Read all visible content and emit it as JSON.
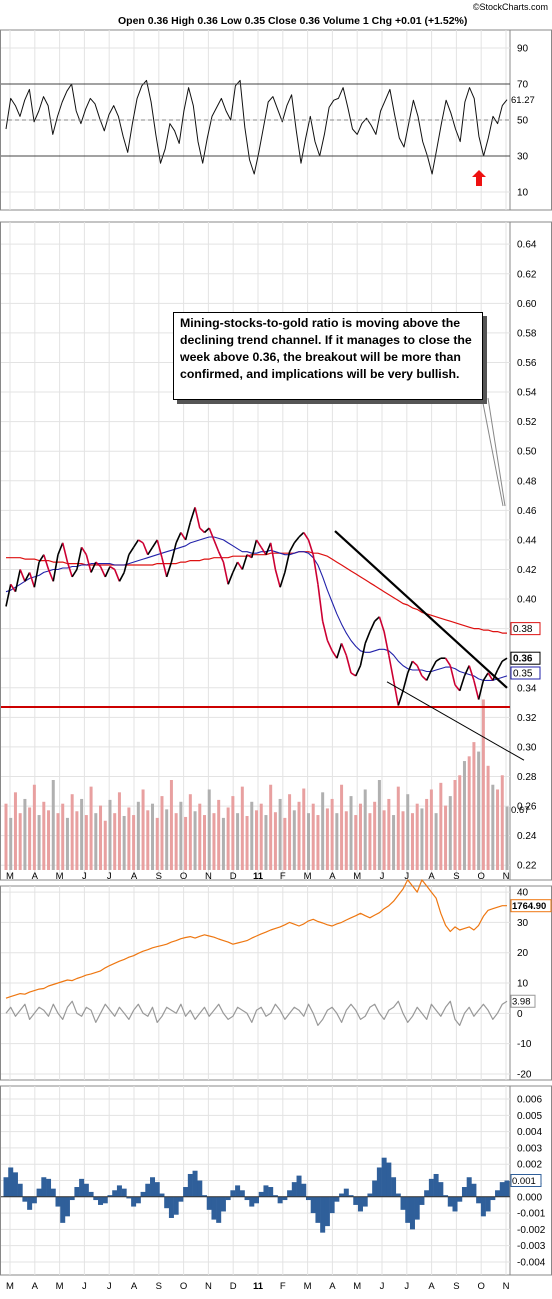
{
  "header": {
    "brand": "©StockCharts.com",
    "ohlc": "Open 0.36  High 0.36  Low 0.35  Close 0.36  Volume 1  Chg +0.01 (+1.52%)"
  },
  "annotation": {
    "text": "Mining-stocks-to-gold ratio is moving above the declining trend channel. If it manages to close the week above 0.36, the breakout will be more than confirmed, and implications will be very bullish."
  },
  "colors": {
    "price_up": "#000000",
    "price_down": "#cc0033",
    "ma50": "#2222aa",
    "ma200": "#dd1111",
    "support": "#cc0000",
    "gold": "#ee7711",
    "oscillator": "#999999",
    "histogram": "#2f5f9a",
    "volume": "#e8a0a0",
    "volume_alt": "#b0b0b0",
    "arrow": "#ee1111"
  },
  "chart_data": [
    {
      "type": "line",
      "name": "rsi",
      "ylim": [
        0,
        100
      ],
      "yticks": [
        "90",
        "70",
        "50",
        "30",
        "10"
      ],
      "reference_lines": [
        70,
        50,
        30
      ],
      "last_value": "61.27",
      "values": [
        45,
        62,
        58,
        52,
        61,
        67,
        49,
        55,
        63,
        58,
        42,
        52,
        60,
        66,
        70,
        55,
        48,
        56,
        62,
        59,
        51,
        44,
        53,
        58,
        52,
        41,
        32,
        48,
        62,
        69,
        72,
        60,
        42,
        26,
        34,
        48,
        44,
        37,
        55,
        68,
        58,
        38,
        26,
        40,
        52,
        57,
        62,
        55,
        50,
        69,
        72,
        46,
        28,
        20,
        32,
        46,
        60,
        63,
        56,
        49,
        58,
        64,
        44,
        26,
        40,
        52,
        38,
        30,
        42,
        57,
        61,
        62,
        68,
        57,
        45,
        42,
        48,
        51,
        47,
        42,
        55,
        61,
        67,
        53,
        40,
        35,
        48,
        61,
        52,
        38,
        30,
        20,
        34,
        48,
        61,
        54,
        45,
        38,
        60,
        68,
        62,
        41,
        30,
        40,
        52,
        48,
        58,
        61.27
      ]
    },
    {
      "type": "line",
      "name": "price",
      "ylim": [
        0.21,
        0.655
      ],
      "yticks": [
        "0.64",
        "0.62",
        "0.60",
        "0.58",
        "0.56",
        "0.54",
        "0.52",
        "0.50",
        "0.48",
        "0.46",
        "0.44",
        "0.42",
        "0.40",
        "0.38",
        "0.36",
        "0.34",
        "0.32",
        "0.30",
        "0.28",
        "0.26",
        "0.24",
        "0.22"
      ],
      "x_labels": [
        "M",
        "A",
        "M",
        "J",
        "J",
        "A",
        "S",
        "O",
        "N",
        "D",
        "11",
        "F",
        "M",
        "A",
        "M",
        "J",
        "J",
        "A",
        "S",
        "O",
        "N"
      ],
      "last_price_label": "0.36",
      "ma50_label": "0.35",
      "ma200_label": "0.38",
      "volume_label": "0.67",
      "support_level": 0.327,
      "close": [
        0.395,
        0.41,
        0.405,
        0.42,
        0.412,
        0.418,
        0.408,
        0.425,
        0.43,
        0.42,
        0.412,
        0.43,
        0.438,
        0.425,
        0.415,
        0.42,
        0.435,
        0.43,
        0.418,
        0.425,
        0.422,
        0.415,
        0.422,
        0.42,
        0.412,
        0.418,
        0.43,
        0.435,
        0.44,
        0.438,
        0.43,
        0.435,
        0.44,
        0.428,
        0.415,
        0.425,
        0.438,
        0.445,
        0.44,
        0.452,
        0.462,
        0.448,
        0.445,
        0.448,
        0.44,
        0.432,
        0.425,
        0.41,
        0.418,
        0.425,
        0.42,
        0.43,
        0.428,
        0.44,
        0.435,
        0.43,
        0.438,
        0.42,
        0.408,
        0.418,
        0.432,
        0.438,
        0.442,
        0.445,
        0.44,
        0.43,
        0.41,
        0.385,
        0.372,
        0.365,
        0.36,
        0.37,
        0.362,
        0.35,
        0.348,
        0.355,
        0.37,
        0.378,
        0.385,
        0.388,
        0.378,
        0.362,
        0.345,
        0.328,
        0.338,
        0.35,
        0.358,
        0.355,
        0.348,
        0.345,
        0.352,
        0.358,
        0.36,
        0.36,
        0.355,
        0.342,
        0.338,
        0.348,
        0.355,
        0.345,
        0.332,
        0.345,
        0.35,
        0.345,
        0.352,
        0.358,
        0.36
      ],
      "ma50": [
        0.405,
        0.406,
        0.408,
        0.41,
        0.412,
        0.414,
        0.415,
        0.416,
        0.418,
        0.419,
        0.42,
        0.42,
        0.421,
        0.421,
        0.422,
        0.422,
        0.423,
        0.423,
        0.424,
        0.424,
        0.424,
        0.424,
        0.424,
        0.423,
        0.423,
        0.423,
        0.424,
        0.425,
        0.426,
        0.427,
        0.428,
        0.429,
        0.43,
        0.431,
        0.432,
        0.433,
        0.434,
        0.435,
        0.436,
        0.438,
        0.439,
        0.44,
        0.441,
        0.442,
        0.442,
        0.441,
        0.44,
        0.438,
        0.436,
        0.434,
        0.432,
        0.432,
        0.431,
        0.431,
        0.432,
        0.432,
        0.433,
        0.432,
        0.431,
        0.43,
        0.43,
        0.431,
        0.432,
        0.432,
        0.431,
        0.428,
        0.423,
        0.415,
        0.406,
        0.398,
        0.39,
        0.383,
        0.377,
        0.372,
        0.368,
        0.365,
        0.364,
        0.364,
        0.365,
        0.366,
        0.366,
        0.365,
        0.362,
        0.358,
        0.355,
        0.353,
        0.352,
        0.352,
        0.352,
        0.351,
        0.351,
        0.352,
        0.353,
        0.354,
        0.354,
        0.353,
        0.351,
        0.35,
        0.349,
        0.348,
        0.346,
        0.345,
        0.345,
        0.345,
        0.346,
        0.347,
        0.348
      ],
      "ma200": [
        0.428,
        0.428,
        0.428,
        0.428,
        0.427,
        0.427,
        0.427,
        0.426,
        0.426,
        0.426,
        0.425,
        0.425,
        0.425,
        0.424,
        0.424,
        0.424,
        0.424,
        0.423,
        0.423,
        0.423,
        0.423,
        0.423,
        0.423,
        0.423,
        0.423,
        0.423,
        0.423,
        0.423,
        0.423,
        0.423,
        0.423,
        0.423,
        0.424,
        0.424,
        0.424,
        0.424,
        0.424,
        0.425,
        0.425,
        0.426,
        0.426,
        0.426,
        0.427,
        0.427,
        0.428,
        0.428,
        0.428,
        0.428,
        0.429,
        0.429,
        0.429,
        0.429,
        0.43,
        0.43,
        0.43,
        0.43,
        0.431,
        0.431,
        0.431,
        0.431,
        0.431,
        0.431,
        0.432,
        0.432,
        0.432,
        0.431,
        0.431,
        0.43,
        0.429,
        0.427,
        0.425,
        0.423,
        0.421,
        0.419,
        0.417,
        0.415,
        0.413,
        0.411,
        0.409,
        0.407,
        0.405,
        0.403,
        0.401,
        0.399,
        0.397,
        0.396,
        0.394,
        0.393,
        0.391,
        0.39,
        0.389,
        0.388,
        0.387,
        0.386,
        0.385,
        0.384,
        0.383,
        0.382,
        0.381,
        0.38,
        0.38,
        0.379,
        0.379,
        0.378,
        0.378,
        0.377,
        0.377
      ],
      "volume": [
        0.7,
        0.55,
        0.82,
        0.6,
        0.75,
        0.66,
        0.9,
        0.58,
        0.72,
        0.63,
        0.95,
        0.6,
        0.7,
        0.55,
        0.8,
        0.62,
        0.75,
        0.58,
        0.88,
        0.6,
        0.68,
        0.52,
        0.74,
        0.6,
        0.82,
        0.57,
        0.66,
        0.58,
        0.72,
        0.85,
        0.63,
        0.7,
        0.55,
        0.78,
        0.64,
        0.95,
        0.6,
        0.72,
        0.56,
        0.8,
        0.62,
        0.7,
        0.58,
        0.85,
        0.6,
        0.74,
        0.55,
        0.66,
        0.78,
        0.6,
        0.88,
        0.57,
        0.72,
        0.63,
        0.7,
        0.58,
        0.9,
        0.61,
        0.75,
        0.55,
        0.8,
        0.63,
        0.72,
        0.86,
        0.6,
        0.7,
        0.58,
        0.82,
        0.65,
        0.75,
        0.6,
        0.9,
        0.62,
        0.78,
        0.58,
        0.7,
        0.85,
        0.6,
        0.72,
        0.95,
        0.63,
        0.75,
        0.58,
        0.88,
        0.62,
        0.8,
        0.6,
        0.7,
        0.65,
        0.75,
        0.85,
        0.6,
        0.92,
        0.68,
        0.78,
        0.95,
        1.0,
        1.15,
        1.2,
        1.35,
        1.25,
        1.8,
        1.1,
        0.9,
        0.85,
        1.0,
        0.67
      ]
    },
    {
      "type": "line",
      "name": "gold",
      "ylim": [
        -22,
        42
      ],
      "yticks": [
        "40",
        "30",
        "20",
        "10",
        "0",
        "-10",
        "-20"
      ],
      "last_value": "1764.90",
      "values": [
        5,
        5.5,
        6,
        6.5,
        6.3,
        7,
        7.5,
        8,
        8.2,
        9,
        9.5,
        10,
        10.5,
        11,
        10.8,
        11.5,
        12,
        12.6,
        13,
        13.5,
        14,
        15,
        15.8,
        16.5,
        17.2,
        17.8,
        18.5,
        19,
        19.8,
        20.5,
        21,
        21.6,
        22,
        22.4,
        22.8,
        23.5,
        24,
        24.6,
        25,
        25.3,
        24.8,
        25.4,
        25.9,
        25.5,
        25.1,
        24.5,
        24,
        23.5,
        22.8,
        23.2,
        23.6,
        24,
        24.8,
        25.5,
        26.2,
        26.8,
        27.5,
        28,
        28.5,
        29.2,
        30,
        29.4,
        28.8,
        29.5,
        30.5,
        31,
        30.3,
        29.8,
        29.2,
        28.8,
        29.5,
        30,
        30.8,
        31.5,
        32.2,
        33,
        32.2,
        31.5,
        32.4,
        33.2,
        34.5,
        35.5,
        37,
        39,
        41,
        44,
        42,
        40,
        44,
        42,
        40,
        38,
        33,
        29,
        27,
        28.5,
        27.5,
        28,
        28.5,
        27.5,
        29,
        32,
        34,
        34.5,
        35,
        35.5,
        35.5
      ],
      "oscillator": [
        0,
        2,
        -1,
        1,
        3,
        -2,
        0,
        2,
        1,
        -1,
        3,
        0,
        -2,
        2,
        4,
        0,
        -1,
        2,
        1,
        -3,
        0,
        3,
        1,
        -1,
        2,
        0,
        -2,
        1,
        3,
        0,
        -1,
        2,
        -3,
        -1,
        2,
        1,
        0,
        3,
        -1,
        1,
        -2,
        0,
        2,
        -1,
        1,
        3,
        0,
        -2,
        -1,
        2,
        1,
        0,
        -3,
        1,
        2,
        -1,
        0,
        3,
        1,
        -2,
        0,
        2,
        1,
        -1,
        3,
        0,
        -4,
        -2,
        1,
        2,
        0,
        -3,
        1,
        3,
        1,
        -2,
        -1,
        2,
        3,
        0,
        -2,
        1,
        2,
        4,
        0,
        -3,
        -1,
        2,
        0,
        -2,
        3,
        1,
        -1,
        2,
        4,
        -2,
        -4,
        0,
        2,
        -1,
        1,
        3,
        1,
        -2,
        0,
        3,
        3.98
      ],
      "osc_last_label": "3.98"
    },
    {
      "type": "bar",
      "name": "histogram",
      "ylim": [
        -0.0048,
        0.0068
      ],
      "yticks": [
        "0.006",
        "0.005",
        "0.004",
        "0.003",
        "0.002",
        "0.001",
        "0.000",
        "-0.001",
        "-0.002",
        "-0.003",
        "-0.004"
      ],
      "last_value": "0.001",
      "x_labels": [
        "M",
        "A",
        "M",
        "J",
        "J",
        "A",
        "S",
        "O",
        "N",
        "D",
        "11",
        "F",
        "M",
        "A",
        "M",
        "J",
        "J",
        "A",
        "S",
        "O",
        "N"
      ],
      "values": [
        0.0012,
        0.0018,
        0.0015,
        0.0008,
        -0.0003,
        -0.0008,
        -0.0004,
        0.0005,
        0.0012,
        0.0011,
        0.0005,
        -0.0006,
        -0.0016,
        -0.0012,
        -0.0002,
        0.0006,
        0.0011,
        0.0008,
        0.0003,
        -0.0002,
        -0.0005,
        -0.0004,
        0.0001,
        0.0004,
        0.0007,
        0.0005,
        -0.0001,
        -0.0006,
        -0.0004,
        0.0003,
        0.0008,
        0.0012,
        0.0009,
        0.0002,
        -0.0007,
        -0.0013,
        -0.0011,
        -0.0003,
        0.0006,
        0.0014,
        0.0016,
        0.001,
        0.0001,
        -0.0008,
        -0.0014,
        -0.0016,
        -0.0009,
        -0.0002,
        0.0004,
        0.0007,
        0.0004,
        -0.0002,
        -0.0006,
        -0.0004,
        0.0003,
        0.0007,
        0.0006,
        0.0001,
        -0.0004,
        -0.0002,
        0.0004,
        0.0009,
        0.0013,
        0.0008,
        -0.0002,
        -0.001,
        -0.0016,
        -0.0022,
        -0.0018,
        -0.001,
        -0.0003,
        0.0002,
        0.0005,
        0.0001,
        -0.0005,
        -0.0009,
        -0.0006,
        0.0002,
        0.001,
        0.0018,
        0.0024,
        0.0021,
        0.0012,
        0.0002,
        -0.0008,
        -0.0016,
        -0.002,
        -0.0014,
        -0.0005,
        0.0004,
        0.0011,
        0.0014,
        0.0009,
        0.0001,
        -0.0006,
        -0.0009,
        -0.0003,
        0.0006,
        0.0012,
        0.0008,
        -0.0004,
        -0.0012,
        -0.0009,
        -0.0002,
        0.0004,
        0.0009,
        0.001
      ]
    }
  ]
}
